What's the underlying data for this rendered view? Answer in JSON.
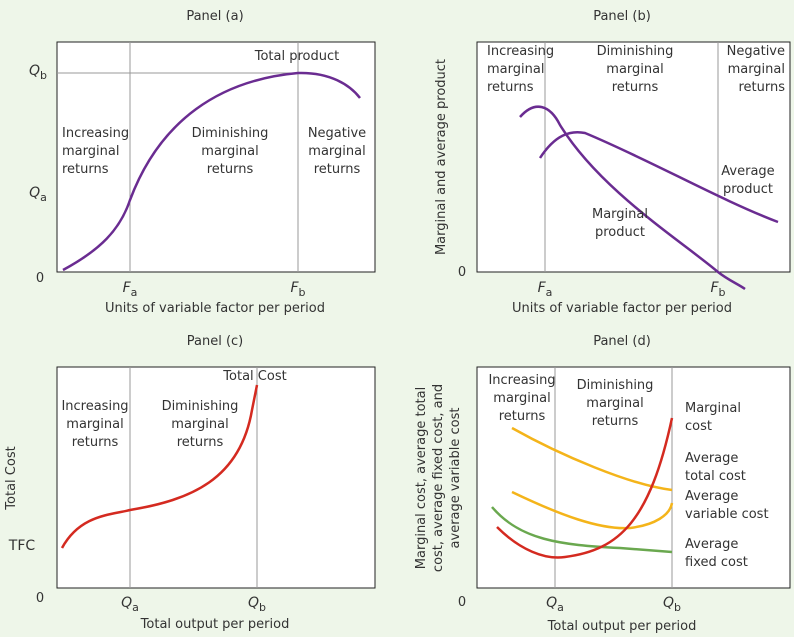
{
  "panels": [
    {
      "title": "Panel (a)",
      "x_axis_label": "Units of variable factor per period",
      "origin": "0",
      "x_ticks": [
        [
          "F",
          "a"
        ],
        [
          "F",
          "b"
        ]
      ],
      "y_ticks": [
        [
          "Q",
          "b"
        ],
        [
          "Q",
          "a"
        ]
      ],
      "labels": [
        [
          "Total product"
        ],
        [
          "Increasing",
          "marginal",
          "returns"
        ],
        [
          "Diminishing",
          "marginal",
          "returns"
        ],
        [
          "Negative",
          "marginal",
          "returns"
        ]
      ]
    },
    {
      "title": "Panel (b)",
      "x_axis_label": "Units of variable factor per period",
      "y_axis_label": [
        "Marginal and average product"
      ],
      "origin": "0",
      "x_ticks": [
        [
          "F",
          "a"
        ],
        [
          "F",
          "b"
        ]
      ],
      "labels": [
        [
          "Increasing",
          "marginal",
          "returns"
        ],
        [
          "Diminishing",
          "marginal",
          "returns"
        ],
        [
          "Negative",
          "marginal",
          "returns"
        ],
        [
          "Average",
          "product"
        ],
        [
          "Marginal",
          "product"
        ]
      ]
    },
    {
      "title": "Panel (c)",
      "x_axis_label": "Total output per period",
      "y_axis_label": [
        "Total Cost"
      ],
      "origin": "0",
      "x_ticks": [
        [
          "Q",
          "a"
        ],
        [
          "Q",
          "b"
        ]
      ],
      "y_ticks": [
        [
          "TFC"
        ]
      ],
      "labels": [
        [
          "Total Cost"
        ],
        [
          "Increasing",
          "marginal",
          "returns"
        ],
        [
          "Diminishing",
          "marginal",
          "returns"
        ]
      ]
    },
    {
      "title": "Panel (d)",
      "x_axis_label": "Total output per period",
      "y_axis_label": [
        "Marginal cost, average total",
        "cost, average fixed cost, and",
        "average variable cost"
      ],
      "origin": "0",
      "x_ticks": [
        [
          "Q",
          "a"
        ],
        [
          "Q",
          "b"
        ]
      ],
      "labels": [
        [
          "Increasing",
          "marginal",
          "returns"
        ],
        [
          "Diminishing",
          "marginal",
          "returns"
        ],
        [
          "Marginal",
          "cost"
        ],
        [
          "Average",
          "total cost"
        ],
        [
          "Average",
          "variable cost"
        ],
        [
          "Average",
          "fixed cost"
        ]
      ]
    }
  ]
}
